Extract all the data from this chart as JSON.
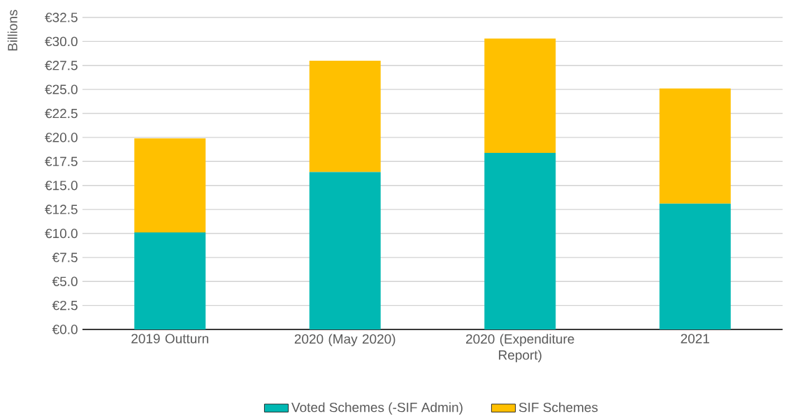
{
  "chart_data": {
    "type": "bar",
    "ylabel": "Billions",
    "stacked": true,
    "grid": "y",
    "legend": "bottom",
    "categories": [
      "2019 Outturn",
      "2020 (May 2020)",
      "2020 (Expenditure Report)",
      "2021"
    ],
    "series": [
      {
        "name": "Voted Schemes (-SIF Admin)",
        "color": "#00b8b3",
        "values": [
          10.1,
          16.4,
          18.4,
          13.1
        ]
      },
      {
        "name": "SIF Schemes",
        "color": "#ffc000",
        "values": [
          9.8,
          11.6,
          11.9,
          12.0
        ]
      }
    ],
    "ylim": [
      0,
      32.5
    ],
    "yticks": [
      {
        "value": 0,
        "label": "€0.0"
      },
      {
        "value": 2.5,
        "label": "€2.5"
      },
      {
        "value": 5,
        "label": "€5.0"
      },
      {
        "value": 7.5,
        "label": "€7.5"
      },
      {
        "value": 10,
        "label": "€10.0"
      },
      {
        "value": 12.5,
        "label": "€12.5"
      },
      {
        "value": 15,
        "label": "€15.0"
      },
      {
        "value": 17.5,
        "label": "€17.5"
      },
      {
        "value": 20,
        "label": "€20.0"
      },
      {
        "value": 22.5,
        "label": "€22.5"
      },
      {
        "value": 25,
        "label": "€25.0"
      },
      {
        "value": 27.5,
        "label": "€27.5"
      },
      {
        "value": 30,
        "label": "€30.0"
      },
      {
        "value": 32.5,
        "label": "€32.5"
      }
    ]
  }
}
